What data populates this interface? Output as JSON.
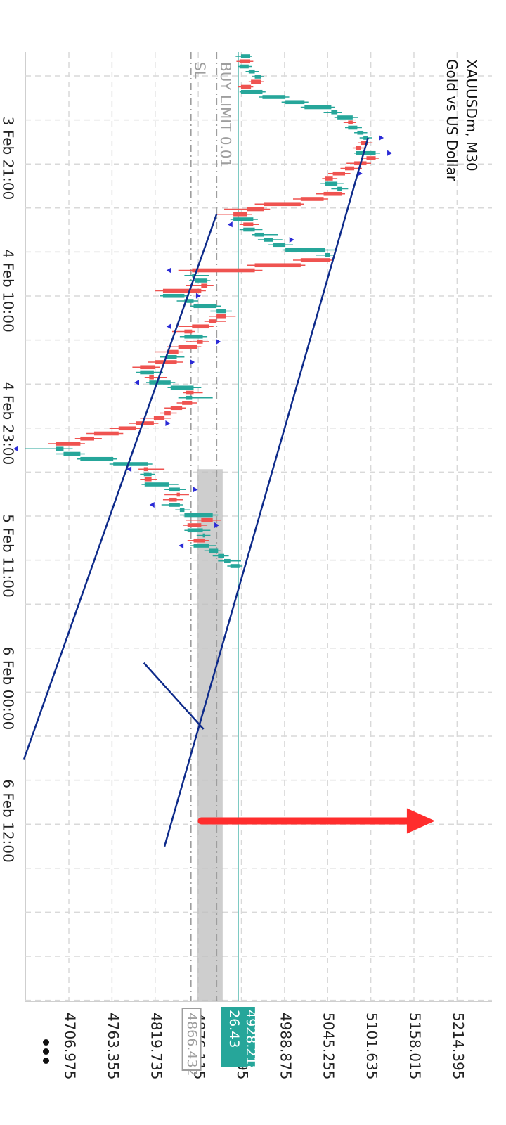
{
  "chart_data": {
    "type": "candlestick",
    "orientation": "rotated-90-clockwise",
    "title": "XAUUSDm, M30",
    "subtitle": "Gold vs US Dollar",
    "price_ticks": [
      "4706.975",
      "4763.355",
      "4819.735",
      "4876.115",
      "4932.495",
      "4988.875",
      "5045.255",
      "5101.635",
      "5158.015",
      "5214.395"
    ],
    "price_range": [
      4650,
      5260
    ],
    "date_labels": [
      {
        "label": "3 Feb 21:00",
        "bar": 20
      },
      {
        "label": "4 Feb 10:00",
        "bar": 46
      },
      {
        "label": "4 Feb 23:00",
        "bar": 72
      },
      {
        "label": "5 Feb 11:00",
        "bar": 98
      },
      {
        "label": "6 Feb 00:00",
        "bar": 124
      },
      {
        "label": "6 Feb 12:00",
        "bar": 150
      }
    ],
    "candles": [
      [
        4932,
        4944,
        4925,
        4946
      ],
      [
        4944,
        4930,
        4926,
        4948
      ],
      [
        4930,
        4942,
        4928,
        4946
      ],
      [
        4942,
        4950,
        4938,
        4955
      ],
      [
        4950,
        4958,
        4946,
        4962
      ],
      [
        4958,
        4945,
        4942,
        4962
      ],
      [
        4945,
        4932,
        4928,
        4948
      ],
      [
        4932,
        4960,
        4930,
        4964
      ],
      [
        4960,
        4990,
        4955,
        4995
      ],
      [
        4990,
        5015,
        4985,
        5020
      ],
      [
        5015,
        5050,
        5010,
        5055
      ],
      [
        5050,
        5058,
        5040,
        5064
      ],
      [
        5058,
        5078,
        5054,
        5085
      ],
      [
        5078,
        5072,
        5066,
        5082
      ],
      [
        5072,
        5084,
        5068,
        5090
      ],
      [
        5084,
        5092,
        5080,
        5097
      ],
      [
        5092,
        5098,
        5087,
        5103
      ],
      [
        5098,
        5089,
        5085,
        5104
      ],
      [
        5089,
        5082,
        5078,
        5095
      ],
      [
        5082,
        5108,
        5080,
        5114
      ],
      [
        5108,
        5096,
        5090,
        5112
      ],
      [
        5096,
        5080,
        5070,
        5102
      ],
      [
        5080,
        5068,
        5062,
        5090
      ],
      [
        5068,
        5052,
        5046,
        5075
      ],
      [
        5052,
        5042,
        5038,
        5058
      ],
      [
        5042,
        5058,
        5036,
        5066
      ],
      [
        5058,
        5064,
        5050,
        5072
      ],
      [
        5064,
        5040,
        5030,
        5068
      ],
      [
        5040,
        5010,
        5000,
        5046
      ],
      [
        5010,
        4962,
        4950,
        5014
      ],
      [
        4962,
        4940,
        4910,
        4970
      ],
      [
        4940,
        4922,
        4900,
        4946
      ],
      [
        4922,
        4948,
        4918,
        4954
      ],
      [
        4948,
        4935,
        4930,
        4955
      ],
      [
        4935,
        4950,
        4930,
        4960
      ],
      [
        4950,
        4962,
        4946,
        4980
      ],
      [
        4962,
        4974,
        4954,
        4986
      ],
      [
        4974,
        4990,
        4968,
        5000
      ],
      [
        4990,
        5042,
        4986,
        5056
      ],
      [
        5042,
        5048,
        5030,
        5054
      ],
      [
        5048,
        5010,
        5000,
        5052
      ],
      [
        5010,
        4950,
        4940,
        5016
      ],
      [
        4950,
        4868,
        4850,
        4960
      ],
      [
        4868,
        4872,
        4858,
        4890
      ],
      [
        4872,
        4888,
        4864,
        4892
      ],
      [
        4888,
        4880,
        4860,
        4896
      ],
      [
        4880,
        4830,
        4820,
        4886
      ],
      [
        4830,
        4858,
        4826,
        4864
      ],
      [
        4858,
        4870,
        4848,
        4876
      ],
      [
        4870,
        4900,
        4866,
        4906
      ],
      [
        4900,
        4912,
        4892,
        4920
      ],
      [
        4912,
        4900,
        4890,
        4925
      ],
      [
        4900,
        4890,
        4884,
        4912
      ],
      [
        4890,
        4868,
        4850,
        4896
      ],
      [
        4868,
        4858,
        4842,
        4872
      ],
      [
        4858,
        4882,
        4852,
        4888
      ],
      [
        4882,
        4875,
        4860,
        4890
      ],
      [
        4875,
        4850,
        4835,
        4880
      ],
      [
        4850,
        4835,
        4820,
        4856
      ],
      [
        4835,
        4848,
        4826,
        4858
      ],
      [
        4848,
        4820,
        4810,
        4856
      ],
      [
        4820,
        4800,
        4790,
        4826
      ],
      [
        4800,
        4818,
        4795,
        4830
      ],
      [
        4818,
        4812,
        4806,
        4835
      ],
      [
        4812,
        4840,
        4808,
        4846
      ],
      [
        4840,
        4870,
        4836,
        4880
      ],
      [
        4870,
        4860,
        4856,
        4882
      ],
      [
        4860,
        4868,
        4850,
        4895
      ],
      [
        4868,
        4855,
        4848,
        4875
      ],
      [
        4855,
        4840,
        4832,
        4860
      ],
      [
        4840,
        4832,
        4826,
        4848
      ],
      [
        4832,
        4818,
        4800,
        4840
      ],
      [
        4818,
        4795,
        4786,
        4824
      ],
      [
        4795,
        4772,
        4760,
        4800
      ],
      [
        4772,
        4740,
        4730,
        4778
      ],
      [
        4740,
        4722,
        4715,
        4750
      ],
      [
        4722,
        4690,
        4680,
        4728
      ],
      [
        4690,
        4700,
        4650,
        4712
      ],
      [
        4700,
        4722,
        4690,
        4728
      ],
      [
        4722,
        4765,
        4718,
        4770
      ],
      [
        4765,
        4810,
        4760,
        4816
      ],
      [
        4810,
        4805,
        4798,
        4832
      ],
      [
        4805,
        4815,
        4800,
        4820
      ],
      [
        4815,
        4806,
        4800,
        4822
      ],
      [
        4806,
        4838,
        4802,
        4850
      ],
      [
        4838,
        4852,
        4832,
        4860
      ],
      [
        4852,
        4848,
        4832,
        4864
      ],
      [
        4848,
        4838,
        4830,
        4856
      ],
      [
        4838,
        4852,
        4828,
        4856
      ],
      [
        4852,
        4858,
        4846,
        4866
      ],
      [
        4858,
        4895,
        4852,
        4902
      ],
      [
        4895,
        4880,
        4860,
        4906
      ],
      [
        4880,
        4862,
        4856,
        4888
      ],
      [
        4862,
        4882,
        4858,
        4892
      ],
      [
        4882,
        4885,
        4874,
        4892
      ],
      [
        4885,
        4870,
        4862,
        4890
      ],
      [
        4870,
        4890,
        4866,
        4900
      ],
      [
        4890,
        4902,
        4884,
        4905
      ],
      [
        4902,
        4910,
        4895,
        4916
      ],
      [
        4910,
        4918,
        4902,
        4932
      ],
      [
        4918,
        4930,
        4914,
        4934
      ]
    ],
    "channel_lines": [
      {
        "from": {
          "bar": 16,
          "price": 5098
        },
        "to": {
          "bar": 155,
          "price": 4832
        }
      },
      {
        "from": {
          "bar": 31,
          "price": 4900
        },
        "to": {
          "bar": 138,
          "price": 4648
        }
      },
      {
        "from": {
          "bar": 119,
          "price": 4805
        },
        "to": {
          "bar": 132,
          "price": 4883
        }
      }
    ],
    "current_price": "4928.218",
    "current_price_sub": "26.43",
    "buy_limit": {
      "label": "BUY LIMIT 0.01",
      "price": 4900
    },
    "stop_loss": {
      "label": "SL",
      "price": "4866.432",
      "value": 4866.432
    },
    "arrow": {
      "from": {
        "bar": 150,
        "price": 4880
      },
      "to": {
        "bar": 150,
        "price": 5180
      }
    },
    "grid": true,
    "colors": {
      "bull": "#26a69a",
      "bear": "#ef5350",
      "channel": "#0d2a8a",
      "arrow": "#ff2d2d",
      "price_line": "#26a69a",
      "level_line": "#9e9e9e",
      "zone": "#bdbdbd",
      "grid": "#d9d9d9",
      "fractal": "#2b2bd6"
    }
  },
  "ui": {
    "more_menu_icon": "more-dots-icon"
  }
}
